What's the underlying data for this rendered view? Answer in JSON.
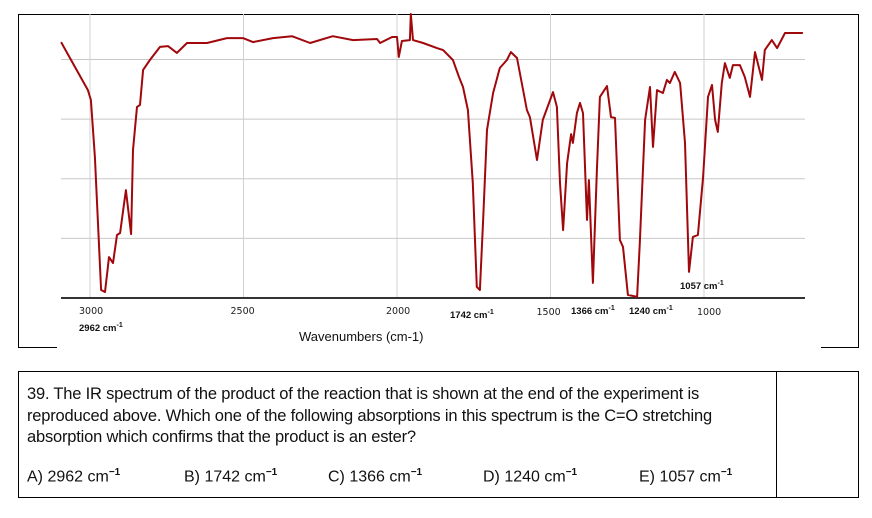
{
  "chart_data": {
    "type": "line",
    "title": "",
    "xlabel": "Wavenumbers (cm-1)",
    "ylabel": "",
    "x_reversed": true,
    "xlim": [
      3094,
      678
    ],
    "ylim": [
      0,
      100
    ],
    "y_quantity": "transmittance (%), estimated",
    "grid": true,
    "x_ticks": [
      3000,
      2500,
      2000,
      1500,
      1000
    ],
    "x_tick_labels": [
      "3000",
      "2500",
      "2000",
      "1500",
      "1000"
    ],
    "y_gridlines": [
      84,
      63,
      42,
      21
    ],
    "line_color": "#a0080c",
    "series": [
      {
        "name": "IR spectrum",
        "points": [
          [
            3094,
            90.1
          ],
          [
            3007,
            73.2
          ],
          [
            2997,
            69.7
          ],
          [
            2984,
            49.6
          ],
          [
            2964,
            2.8
          ],
          [
            2951,
            2.1
          ],
          [
            2938,
            14.4
          ],
          [
            2925,
            12.3
          ],
          [
            2912,
            22.2
          ],
          [
            2902,
            22.9
          ],
          [
            2883,
            38.0
          ],
          [
            2866,
            22.5
          ],
          [
            2860,
            52.1
          ],
          [
            2847,
            67.3
          ],
          [
            2837,
            68.0
          ],
          [
            2827,
            80.3
          ],
          [
            2805,
            83.8
          ],
          [
            2772,
            88.4
          ],
          [
            2746,
            88.7
          ],
          [
            2717,
            86.3
          ],
          [
            2684,
            89.8
          ],
          [
            2619,
            89.8
          ],
          [
            2554,
            91.5
          ],
          [
            2502,
            91.5
          ],
          [
            2469,
            90.1
          ],
          [
            2404,
            91.5
          ],
          [
            2342,
            92.2
          ],
          [
            2283,
            89.8
          ],
          [
            2209,
            92.2
          ],
          [
            2143,
            90.8
          ],
          [
            2065,
            91.2
          ],
          [
            2055,
            89.8
          ],
          [
            2016,
            91.9
          ],
          [
            2000,
            91.9
          ],
          [
            1994,
            84.9
          ],
          [
            1984,
            90.5
          ],
          [
            1958,
            90.8
          ],
          [
            1955,
            100
          ],
          [
            1948,
            90.8
          ],
          [
            1915,
            89.8
          ],
          [
            1870,
            88.0
          ],
          [
            1850,
            87.3
          ],
          [
            1818,
            83.8
          ],
          [
            1798,
            77.8
          ],
          [
            1785,
            74.3
          ],
          [
            1769,
            66.2
          ],
          [
            1753,
            40.5
          ],
          [
            1740,
            3.9
          ],
          [
            1730,
            2.8
          ],
          [
            1720,
            26.4
          ],
          [
            1707,
            59.2
          ],
          [
            1687,
            72.2
          ],
          [
            1665,
            81.0
          ],
          [
            1642,
            83.8
          ],
          [
            1629,
            86.6
          ],
          [
            1609,
            84.5
          ],
          [
            1577,
            66.2
          ],
          [
            1567,
            63.7
          ],
          [
            1544,
            48.6
          ],
          [
            1525,
            62.7
          ],
          [
            1492,
            72.5
          ],
          [
            1479,
            67.3
          ],
          [
            1469,
            40.5
          ],
          [
            1459,
            23.9
          ],
          [
            1446,
            47.5
          ],
          [
            1433,
            57.7
          ],
          [
            1427,
            54.6
          ],
          [
            1414,
            65.1
          ],
          [
            1404,
            68.7
          ],
          [
            1394,
            65.1
          ],
          [
            1381,
            27.5
          ],
          [
            1375,
            41.5
          ],
          [
            1362,
            5.3
          ],
          [
            1349,
            45.1
          ],
          [
            1339,
            70.8
          ],
          [
            1316,
            74.6
          ],
          [
            1303,
            63.7
          ],
          [
            1290,
            63.4
          ],
          [
            1274,
            20.4
          ],
          [
            1264,
            18.0
          ],
          [
            1248,
            1.1
          ],
          [
            1218,
            0.4
          ],
          [
            1209,
            19.4
          ],
          [
            1192,
            62.7
          ],
          [
            1176,
            74.3
          ],
          [
            1166,
            53.2
          ],
          [
            1153,
            73.2
          ],
          [
            1134,
            72.2
          ],
          [
            1121,
            76.8
          ],
          [
            1111,
            75.7
          ],
          [
            1095,
            79.6
          ],
          [
            1078,
            75.7
          ],
          [
            1062,
            54.6
          ],
          [
            1049,
            9.2
          ],
          [
            1036,
            21.5
          ],
          [
            1020,
            22.2
          ],
          [
            1003,
            42.6
          ],
          [
            987,
            70.8
          ],
          [
            974,
            75.0
          ],
          [
            964,
            62.7
          ],
          [
            955,
            58.5
          ],
          [
            942,
            75.7
          ],
          [
            932,
            82.7
          ],
          [
            916,
            77.5
          ],
          [
            906,
            82.0
          ],
          [
            883,
            82.0
          ],
          [
            867,
            77.8
          ],
          [
            850,
            70.8
          ],
          [
            834,
            86.6
          ],
          [
            811,
            76.8
          ],
          [
            802,
            87.3
          ],
          [
            779,
            90.8
          ],
          [
            762,
            88.0
          ],
          [
            736,
            93.3
          ],
          [
            678,
            93.3
          ]
        ]
      }
    ],
    "annotations": [
      {
        "text": "2962 cm",
        "sup": "-1",
        "wavenumber": 2962
      },
      {
        "text": "1742 cm",
        "sup": "-1",
        "wavenumber": 1742
      },
      {
        "text": "1366 cm",
        "sup": "-1",
        "wavenumber": 1366
      },
      {
        "text": "1240 cm",
        "sup": "-1",
        "wavenumber": 1240
      },
      {
        "text": "1057 cm",
        "sup": "-1",
        "wavenumber": 1057
      }
    ]
  },
  "question": {
    "text": "39. The IR spectrum of the product of the reaction that is shown at the end of the experiment is reproduced above. Which one of the following absorptions in this spectrum is the C=O stretching absorption which confirms that the product is an ester?",
    "options": [
      {
        "label": "A) 2962 cm",
        "sup": "−1"
      },
      {
        "label": "B) 1742 cm",
        "sup": "−1"
      },
      {
        "label": "C) 1366 cm",
        "sup": "−1"
      },
      {
        "label": "D) 1240 cm",
        "sup": "−1"
      },
      {
        "label": "E) 1057 cm",
        "sup": "−1"
      }
    ]
  }
}
